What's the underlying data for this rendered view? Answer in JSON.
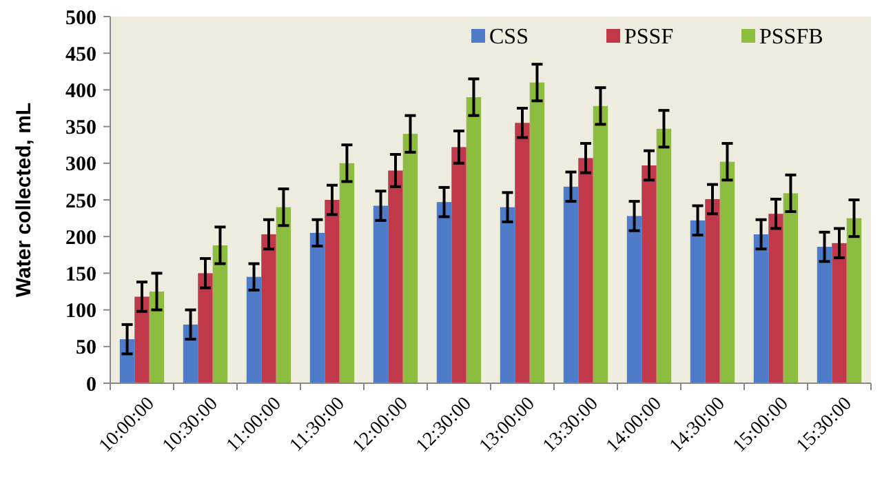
{
  "chart_data": {
    "type": "bar",
    "ylabel": "Water collected, mL",
    "categories": [
      "10:00:00",
      "10:30:00",
      "11:00:00",
      "11:30:00",
      "12:00:00",
      "12:30:00",
      "13:00:00",
      "13:30:00",
      "14:00:00",
      "14:30:00",
      "15:00:00",
      "15:30:00"
    ],
    "series": [
      {
        "name": "CSS",
        "color": "#4f7cc9",
        "values": [
          60,
          80,
          145,
          205,
          242,
          247,
          240,
          268,
          228,
          222,
          203,
          186
        ],
        "errors": [
          20,
          20,
          18,
          18,
          20,
          20,
          20,
          20,
          20,
          20,
          20,
          20
        ]
      },
      {
        "name": "PSSF",
        "color": "#c0394b",
        "values": [
          118,
          150,
          203,
          250,
          290,
          322,
          355,
          307,
          297,
          251,
          231,
          191
        ],
        "errors": [
          20,
          20,
          20,
          20,
          22,
          22,
          20,
          20,
          20,
          20,
          20,
          20
        ]
      },
      {
        "name": "PSSFB",
        "color": "#8cbd3f",
        "values": [
          125,
          188,
          240,
          300,
          340,
          390,
          410,
          378,
          347,
          302,
          259,
          225
        ],
        "errors": [
          25,
          25,
          25,
          25,
          25,
          25,
          25,
          25,
          25,
          25,
          25,
          25
        ]
      }
    ],
    "ylim": [
      0,
      500
    ],
    "yticks": [
      0,
      50,
      100,
      150,
      200,
      250,
      300,
      350,
      400,
      450,
      500
    ],
    "legend": "top right"
  }
}
